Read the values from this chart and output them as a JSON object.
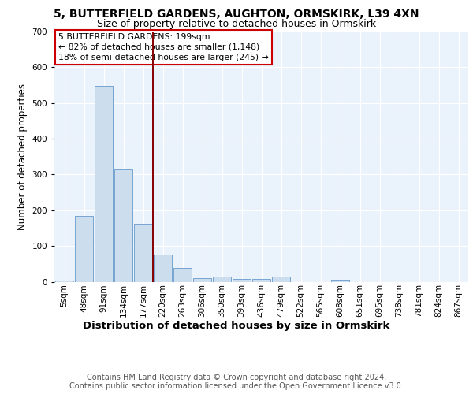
{
  "title1": "5, BUTTERFIELD GARDENS, AUGHTON, ORMSKIRK, L39 4XN",
  "title2": "Size of property relative to detached houses in Ormskirk",
  "xlabel": "Distribution of detached houses by size in Ormskirk",
  "ylabel": "Number of detached properties",
  "categories": [
    "5sqm",
    "48sqm",
    "91sqm",
    "134sqm",
    "177sqm",
    "220sqm",
    "263sqm",
    "306sqm",
    "350sqm",
    "393sqm",
    "436sqm",
    "479sqm",
    "522sqm",
    "565sqm",
    "608sqm",
    "651sqm",
    "695sqm",
    "738sqm",
    "781sqm",
    "824sqm",
    "867sqm"
  ],
  "bar_values": [
    3,
    183,
    547,
    314,
    163,
    75,
    38,
    10,
    15,
    8,
    8,
    14,
    0,
    0,
    5,
    0,
    0,
    0,
    0,
    0,
    0
  ],
  "bar_color": "#ccdded",
  "bar_edgecolor": "#6699cc",
  "vline_x_index": 4.5,
  "vline_color": "#880000",
  "annotation_line1": "5 BUTTERFIELD GARDENS: 199sqm",
  "annotation_line2": "← 82% of detached houses are smaller (1,148)",
  "annotation_line3": "18% of semi-detached houses are larger (245) →",
  "annotation_box_edgecolor": "#cc0000",
  "ylim": [
    0,
    700
  ],
  "yticks": [
    0,
    100,
    200,
    300,
    400,
    500,
    600,
    700
  ],
  "footer1": "Contains HM Land Registry data © Crown copyright and database right 2024.",
  "footer2": "Contains public sector information licensed under the Open Government Licence v3.0.",
  "plot_bg_color": "#eaf2fb",
  "title1_fontsize": 10,
  "title2_fontsize": 9,
  "xlabel_fontsize": 9.5,
  "ylabel_fontsize": 8.5,
  "tick_fontsize": 7.5,
  "annotation_fontsize": 7.8,
  "footer_fontsize": 7
}
